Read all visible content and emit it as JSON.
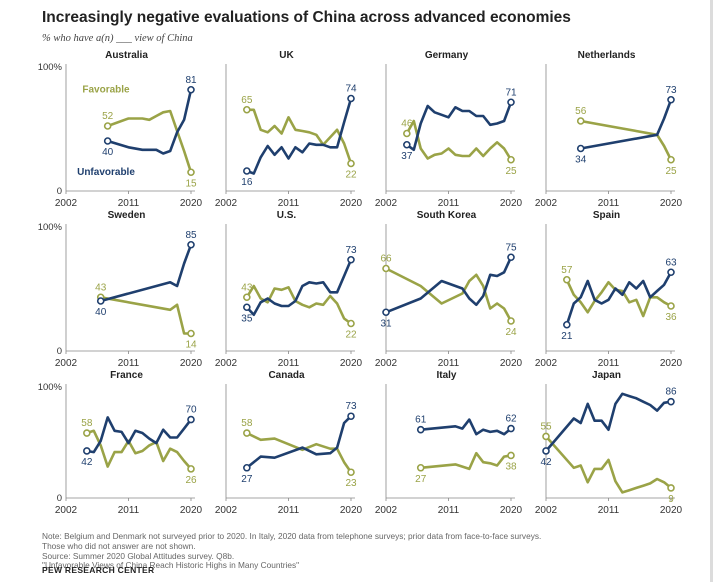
{
  "title": "Increasingly negative evaluations of China across advanced economies",
  "subtitle": "% who have a(n) ___ view of China",
  "axis": {
    "y_top_label": "100%",
    "y_bottom_label": "0",
    "x_tick_labels": [
      "2002",
      "2011",
      "2020"
    ]
  },
  "colors": {
    "favorable": "#9aa347",
    "unfavorable": "#1f3f6e",
    "axis": "#888888"
  },
  "chart_data": {
    "type": "line",
    "ylim": [
      0,
      100
    ],
    "xlim": [
      2002,
      2020
    ],
    "panels": [
      {
        "country": "Australia",
        "series": [
          {
            "name": "Favorable",
            "x": [
              2008,
              2011,
              2013,
              2014,
              2015,
              2016,
              2017,
              2018,
              2019,
              2020
            ],
            "values": [
              52,
              58,
              58,
              57,
              60,
              63,
              64,
              48,
              32,
              15
            ]
          },
          {
            "name": "Unfavorable",
            "x": [
              2008,
              2011,
              2013,
              2014,
              2015,
              2016,
              2017,
              2018,
              2019,
              2020
            ],
            "values": [
              40,
              35,
              33,
              33,
              33,
              30,
              32,
              47,
              57,
              81
            ]
          }
        ]
      },
      {
        "country": "UK",
        "series": [
          {
            "name": "Favorable",
            "x": [
              2005,
              2006,
              2007,
              2008,
              2009,
              2010,
              2011,
              2012,
              2013,
              2014,
              2015,
              2016,
              2017,
              2018,
              2019,
              2020
            ],
            "values": [
              65,
              65,
              49,
              47,
              52,
              46,
              59,
              49,
              48,
              47,
              45,
              37,
              43,
              49,
              38,
              22
            ]
          },
          {
            "name": "Unfavorable",
            "x": [
              2005,
              2006,
              2007,
              2008,
              2009,
              2010,
              2011,
              2012,
              2013,
              2014,
              2015,
              2016,
              2017,
              2018,
              2019,
              2020
            ],
            "values": [
              16,
              14,
              27,
              36,
              29,
              35,
              26,
              35,
              31,
              38,
              37,
              37,
              35,
              35,
              55,
              74
            ]
          }
        ]
      },
      {
        "country": "Germany",
        "series": [
          {
            "name": "Favorable",
            "x": [
              2005,
              2006,
              2007,
              2008,
              2009,
              2010,
              2011,
              2012,
              2013,
              2014,
              2015,
              2016,
              2017,
              2018,
              2019,
              2020
            ],
            "values": [
              46,
              56,
              34,
              26,
              29,
              30,
              34,
              29,
              28,
              28,
              34,
              28,
              34,
              39,
              34,
              25
            ]
          },
          {
            "name": "Unfavorable",
            "x": [
              2005,
              2006,
              2007,
              2008,
              2009,
              2010,
              2011,
              2012,
              2013,
              2014,
              2015,
              2016,
              2017,
              2018,
              2019,
              2020
            ],
            "values": [
              37,
              33,
              54,
              68,
              63,
              61,
              59,
              67,
              64,
              64,
              60,
              60,
              53,
              54,
              56,
              71
            ]
          }
        ]
      },
      {
        "country": "Netherlands",
        "series": [
          {
            "name": "Favorable",
            "x": [
              2007,
              2018,
              2019,
              2020
            ],
            "values": [
              56,
              45,
              36,
              25
            ]
          },
          {
            "name": "Unfavorable",
            "x": [
              2007,
              2018,
              2019,
              2020
            ],
            "values": [
              34,
              45,
              58,
              73
            ]
          }
        ]
      },
      {
        "country": "Sweden",
        "series": [
          {
            "name": "Favorable",
            "x": [
              2007,
              2017,
              2018,
              2019,
              2020
            ],
            "values": [
              43,
              33,
              37,
              14,
              14
            ]
          },
          {
            "name": "Unfavorable",
            "x": [
              2007,
              2017,
              2018,
              2019,
              2020
            ],
            "values": [
              40,
              55,
              52,
              70,
              85
            ]
          }
        ]
      },
      {
        "country": "U.S.",
        "series": [
          {
            "name": "Favorable",
            "x": [
              2005,
              2006,
              2007,
              2008,
              2009,
              2010,
              2011,
              2012,
              2013,
              2014,
              2015,
              2016,
              2017,
              2018,
              2019,
              2020
            ],
            "values": [
              43,
              52,
              42,
              39,
              50,
              49,
              51,
              40,
              37,
              35,
              38,
              37,
              44,
              38,
              26,
              22
            ]
          },
          {
            "name": "Unfavorable",
            "x": [
              2005,
              2006,
              2007,
              2008,
              2009,
              2010,
              2011,
              2012,
              2013,
              2014,
              2015,
              2016,
              2017,
              2018,
              2019,
              2020
            ],
            "values": [
              35,
              29,
              39,
              42,
              38,
              36,
              36,
              40,
              52,
              55,
              54,
              55,
              47,
              47,
              60,
              73
            ]
          }
        ]
      },
      {
        "country": "South Korea",
        "series": [
          {
            "name": "Favorable",
            "x": [
              2002,
              2007,
              2010,
              2013,
              2014,
              2015,
              2016,
              2017,
              2018,
              2019,
              2020
            ],
            "values": [
              66,
              52,
              38,
              46,
              56,
              61,
              52,
              34,
              38,
              34,
              24
            ]
          },
          {
            "name": "Unfavorable",
            "x": [
              2002,
              2007,
              2010,
              2013,
              2014,
              2015,
              2016,
              2017,
              2018,
              2019,
              2020
            ],
            "values": [
              31,
              42,
              56,
              50,
              42,
              37,
              44,
              61,
              60,
              63,
              75
            ]
          }
        ]
      },
      {
        "country": "Spain",
        "series": [
          {
            "name": "Favorable",
            "x": [
              2005,
              2006,
              2007,
              2008,
              2009,
              2010,
              2011,
              2012,
              2013,
              2014,
              2015,
              2016,
              2017,
              2018,
              2019,
              2020
            ],
            "values": [
              57,
              45,
              39,
              31,
              40,
              47,
              55,
              49,
              48,
              39,
              41,
              28,
              43,
              43,
              39,
              36
            ]
          },
          {
            "name": "Unfavorable",
            "x": [
              2005,
              2006,
              2007,
              2008,
              2009,
              2010,
              2011,
              2012,
              2013,
              2014,
              2015,
              2016,
              2017,
              2018,
              2019,
              2020
            ],
            "values": [
              21,
              38,
              43,
              56,
              41,
              38,
              41,
              50,
              45,
              55,
              50,
              56,
              43,
              48,
              53,
              63
            ]
          }
        ]
      },
      {
        "country": "France",
        "series": [
          {
            "name": "Favorable",
            "x": [
              2005,
              2006,
              2007,
              2008,
              2009,
              2010,
              2011,
              2012,
              2013,
              2014,
              2015,
              2016,
              2017,
              2018,
              2019,
              2020
            ],
            "values": [
              58,
              60,
              47,
              28,
              41,
              41,
              51,
              40,
              42,
              47,
              50,
              33,
              44,
              41,
              33,
              26
            ]
          },
          {
            "name": "Unfavorable",
            "x": [
              2005,
              2006,
              2007,
              2008,
              2009,
              2010,
              2011,
              2012,
              2013,
              2014,
              2015,
              2016,
              2017,
              2018,
              2019,
              2020
            ],
            "values": [
              42,
              41,
              51,
              72,
              60,
              59,
              49,
              60,
              58,
              53,
              49,
              61,
              54,
              54,
              62,
              70
            ]
          }
        ]
      },
      {
        "country": "Canada",
        "series": [
          {
            "name": "Favorable",
            "x": [
              2005,
              2007,
              2009,
              2013,
              2015,
              2017,
              2018,
              2019,
              2020
            ],
            "values": [
              58,
              52,
              53,
              43,
              48,
              44,
              44,
              32,
              23
            ]
          },
          {
            "name": "Unfavorable",
            "x": [
              2005,
              2007,
              2009,
              2013,
              2015,
              2017,
              2018,
              2019,
              2020
            ],
            "values": [
              27,
              37,
              36,
              45,
              39,
              40,
              45,
              67,
              73
            ]
          }
        ]
      },
      {
        "country": "Italy",
        "series": [
          {
            "name": "Favorable",
            "x": [
              2007,
              2012,
              2013,
              2014,
              2015,
              2016,
              2017,
              2018,
              2019,
              2020
            ],
            "values": [
              27,
              30,
              28,
              26,
              40,
              32,
              31,
              29,
              37,
              38
            ]
          },
          {
            "name": "Unfavorable",
            "x": [
              2007,
              2012,
              2013,
              2014,
              2015,
              2016,
              2017,
              2018,
              2019,
              2020
            ],
            "values": [
              61,
              64,
              62,
              70,
              57,
              61,
              59,
              60,
              57,
              62
            ]
          }
        ]
      },
      {
        "country": "Japan",
        "series": [
          {
            "name": "Favorable",
            "x": [
              2002,
              2006,
              2007,
              2008,
              2009,
              2010,
              2011,
              2012,
              2013,
              2014,
              2015,
              2016,
              2017,
              2018,
              2019,
              2020
            ],
            "values": [
              55,
              27,
              29,
              14,
              26,
              26,
              34,
              15,
              5,
              7,
              9,
              11,
              13,
              17,
              14,
              9
            ]
          },
          {
            "name": "Unfavorable",
            "x": [
              2002,
              2006,
              2007,
              2008,
              2009,
              2010,
              2011,
              2012,
              2013,
              2014,
              2015,
              2016,
              2017,
              2018,
              2019,
              2020
            ],
            "values": [
              42,
              71,
              67,
              84,
              69,
              69,
              61,
              84,
              93,
              91,
              89,
              86,
              83,
              78,
              85,
              86
            ]
          }
        ]
      }
    ],
    "annotations": [
      {
        "country": "Australia",
        "text": "Favorable",
        "series": "Favorable"
      },
      {
        "country": "Australia",
        "text": "Unfavorable",
        "series": "Unfavorable"
      }
    ]
  },
  "notes": [
    "Note: Belgium and Denmark not surveyed prior to 2020. In Italy, 2020 data from telephone surveys; prior data from face-to-face surveys.",
    "Those who did not answer are not shown.",
    "Source: Summer 2020 Global Attitudes survey. Q8b.",
    "\"Unfavorable Views of China Reach Historic Highs in Many Countries\""
  ],
  "source_org": "PEW RESEARCH CENTER"
}
